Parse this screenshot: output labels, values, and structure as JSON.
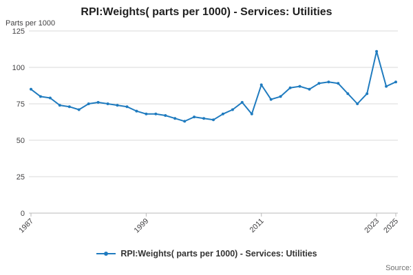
{
  "title": "RPI:Weights( parts per 1000) - Services: Utilities",
  "y_axis_title": "Parts per 1000",
  "legend_label": "RPI:Weights( parts per 1000) - Services: Utilities",
  "source_label": "Source:",
  "colors": {
    "line": "#1F7BBF",
    "grid": "#d9d9d9",
    "baseline": "#b9b9b9",
    "tick_text": "#414042"
  },
  "chart_data": {
    "type": "line",
    "title": "RPI:Weights( parts per 1000) - Services: Utilities",
    "ylabel": "Parts per 1000",
    "xlabel": "",
    "ylim": [
      0,
      125
    ],
    "yticks": [
      0,
      25,
      50,
      75,
      100,
      125
    ],
    "xticks": [
      1987,
      1999,
      2011,
      2023,
      2025
    ],
    "grid": "horizontal",
    "legend_position": "bottom",
    "markers": true,
    "x": [
      1987,
      1988,
      1989,
      1990,
      1991,
      1992,
      1993,
      1994,
      1995,
      1996,
      1997,
      1998,
      1999,
      2000,
      2001,
      2002,
      2003,
      2004,
      2005,
      2006,
      2007,
      2008,
      2009,
      2010,
      2011,
      2012,
      2013,
      2014,
      2015,
      2016,
      2017,
      2018,
      2019,
      2020,
      2021,
      2022,
      2023,
      2024,
      2025
    ],
    "series": [
      {
        "name": "RPI:Weights( parts per 1000) - Services: Utilities",
        "values": [
          85,
          80,
          79,
          74,
          73,
          71,
          75,
          76,
          75,
          74,
          73,
          70,
          68,
          68,
          67,
          65,
          63,
          66,
          65,
          64,
          68,
          71,
          76,
          68,
          88,
          78,
          80,
          86,
          87,
          85,
          89,
          90,
          89,
          82,
          75,
          82,
          111,
          87,
          90
        ]
      }
    ]
  }
}
